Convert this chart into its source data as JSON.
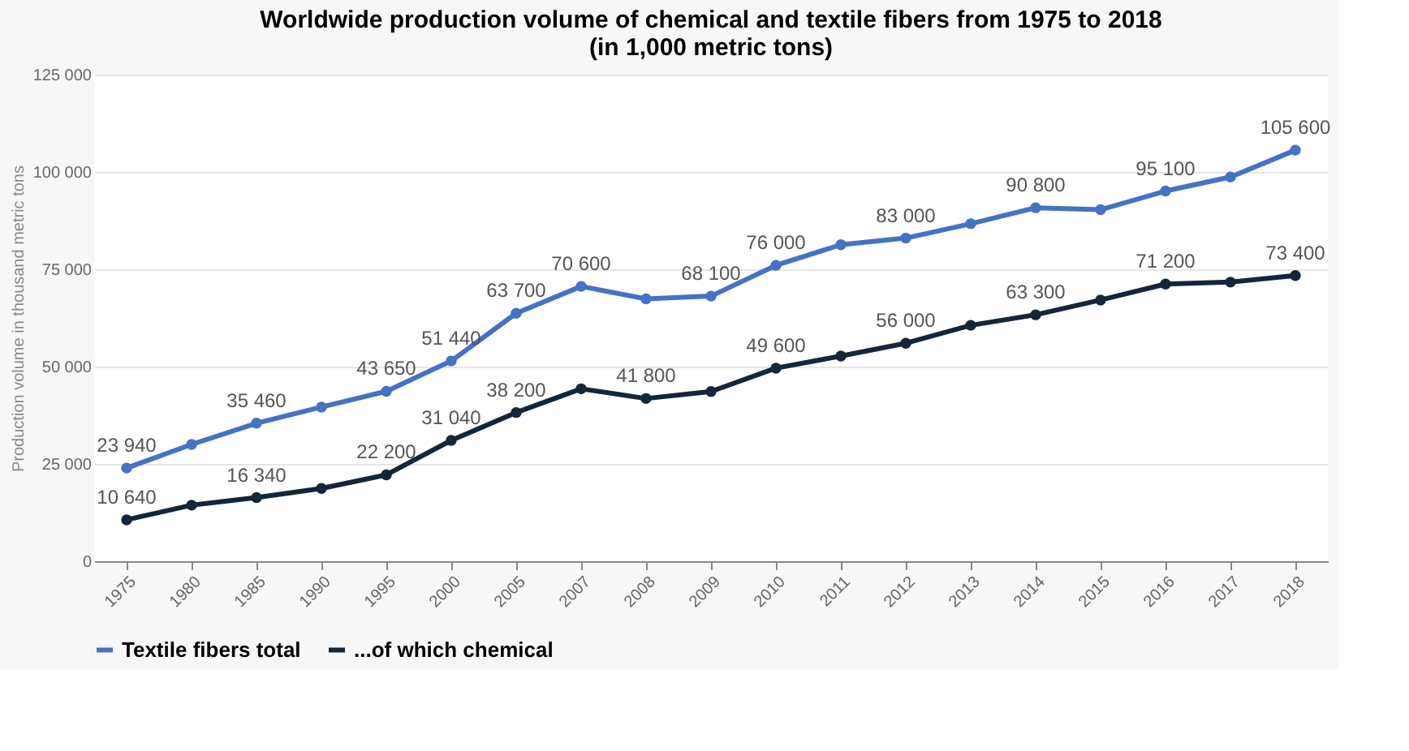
{
  "chart_data": {
    "type": "line",
    "title": "Worldwide production volume of chemical and textile fibers from 1975 to 2018 (in 1,000 metric tons)",
    "ylabel": "Production volume in thousand metric tons",
    "categories": [
      "1975",
      "1980",
      "1985",
      "1990",
      "1995",
      "2000",
      "2005",
      "2007",
      "2008",
      "2009",
      "2010",
      "2011",
      "2012",
      "2013",
      "2014",
      "2015",
      "2016",
      "2017",
      "2018"
    ],
    "series": [
      {
        "name": "Textile fibers total",
        "color": "#4472c4",
        "values": [
          23940,
          30000,
          35460,
          39600,
          43650,
          51440,
          63700,
          70600,
          67400,
          68100,
          76000,
          81300,
          83000,
          86700,
          90800,
          90300,
          95100,
          98700,
          105600
        ],
        "value_labels": [
          "23 940",
          null,
          "35 460",
          null,
          "43 650",
          "51 440",
          "63 700",
          "70 600",
          null,
          "68 100",
          "76 000",
          null,
          "83 000",
          null,
          "90 800",
          null,
          "95 100",
          null,
          "105 600"
        ]
      },
      {
        "name": "...of which chemical",
        "color": "#14263a",
        "values": [
          10640,
          14400,
          16340,
          18700,
          22200,
          31040,
          38200,
          44300,
          41800,
          43600,
          49600,
          52700,
          56000,
          60600,
          63300,
          67100,
          71200,
          71700,
          73400
        ],
        "value_labels": [
          "10 640",
          null,
          "16 340",
          null,
          "22 200",
          "31 040",
          "38 200",
          null,
          "41 800",
          null,
          "49 600",
          null,
          "56 000",
          null,
          "63 300",
          null,
          "71 200",
          null,
          "73 400"
        ]
      }
    ],
    "ylim": [
      0,
      125000
    ],
    "yticks": [
      {
        "value": 0,
        "label": "0"
      },
      {
        "value": 25000,
        "label": "25 000"
      },
      {
        "value": 50000,
        "label": "50 000"
      },
      {
        "value": 75000,
        "label": "75 000"
      },
      {
        "value": 100000,
        "label": "100 000"
      },
      {
        "value": 125000,
        "label": "125 000"
      }
    ],
    "grid": "y",
    "legend": "bottom",
    "marker": "circle",
    "line_style": "solid"
  }
}
